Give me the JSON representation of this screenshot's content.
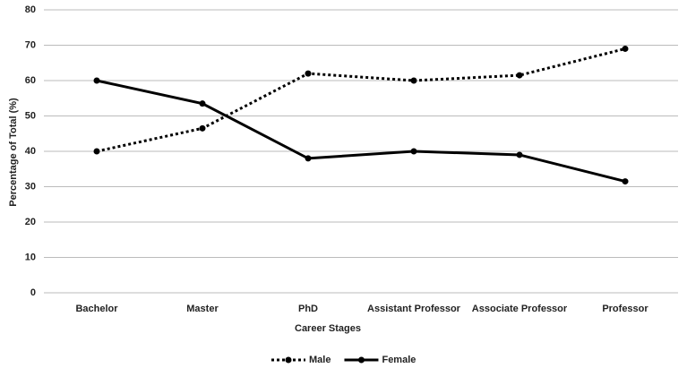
{
  "chart_data": {
    "type": "line",
    "x_label": "Career Stages",
    "y_label": "Percentage of Total (%)",
    "categories": [
      "Bachelor",
      "Master",
      "PhD",
      "Assistant Professor",
      "Associate Professor",
      "Professor"
    ],
    "series": [
      {
        "name": "Male",
        "color": "#000000",
        "dash": "dotted",
        "values": [
          40,
          46.5,
          62,
          60,
          61.5,
          69
        ]
      },
      {
        "name": "Female",
        "color": "#000000",
        "dash": "solid",
        "values": [
          60,
          53.5,
          38,
          40,
          39,
          31.5
        ]
      }
    ],
    "ylim": [
      0,
      80
    ],
    "yticks": [
      0,
      10,
      20,
      30,
      40,
      50,
      60,
      70,
      80
    ],
    "grid": true,
    "legend": "bottom"
  }
}
